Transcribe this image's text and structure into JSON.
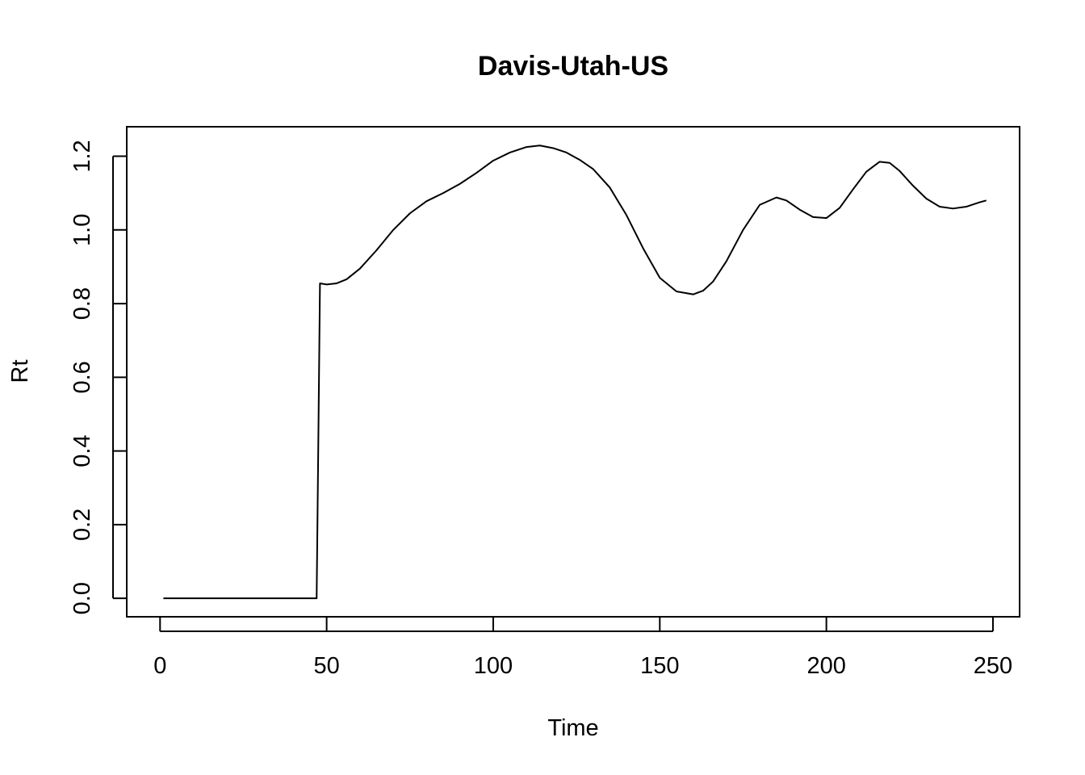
{
  "chart_data": {
    "type": "line",
    "title": "Davis-Utah-US",
    "xlabel": "Time",
    "ylabel": "Rt",
    "xlim": [
      -10,
      258
    ],
    "ylim": [
      -0.05,
      1.28
    ],
    "x_ticks": [
      0,
      50,
      100,
      150,
      200,
      250
    ],
    "x_tick_labels": [
      "0",
      "50",
      "100",
      "150",
      "200",
      "250"
    ],
    "y_ticks": [
      0.0,
      0.2,
      0.4,
      0.6,
      0.8,
      1.0,
      1.2
    ],
    "y_tick_labels": [
      "0.0",
      "0.2",
      "0.4",
      "0.6",
      "0.8",
      "1.0",
      "1.2"
    ],
    "grid": false,
    "legend": "none",
    "series": [
      {
        "x": [
          1,
          10,
          20,
          30,
          40,
          47,
          47.5,
          48,
          50,
          53,
          56,
          60,
          65,
          70,
          75,
          80,
          85,
          90,
          95,
          100,
          105,
          110,
          114,
          118,
          122,
          126,
          130,
          135,
          140,
          145,
          150,
          155,
          160,
          163,
          166,
          170,
          175,
          180,
          185,
          188,
          192,
          196,
          200,
          204,
          208,
          212,
          216,
          219,
          222,
          226,
          230,
          234,
          238,
          242,
          246,
          248
        ],
        "y": [
          0.0,
          0.0,
          0.0,
          0.0,
          0.0,
          0.0,
          0.42,
          0.855,
          0.852,
          0.855,
          0.866,
          0.895,
          0.945,
          1.0,
          1.045,
          1.078,
          1.1,
          1.125,
          1.155,
          1.188,
          1.21,
          1.225,
          1.229,
          1.222,
          1.21,
          1.19,
          1.165,
          1.115,
          1.04,
          0.95,
          0.87,
          0.833,
          0.825,
          0.835,
          0.86,
          0.915,
          1.0,
          1.068,
          1.088,
          1.08,
          1.055,
          1.035,
          1.032,
          1.06,
          1.11,
          1.158,
          1.185,
          1.182,
          1.16,
          1.12,
          1.085,
          1.063,
          1.058,
          1.063,
          1.075,
          1.08
        ]
      }
    ]
  }
}
